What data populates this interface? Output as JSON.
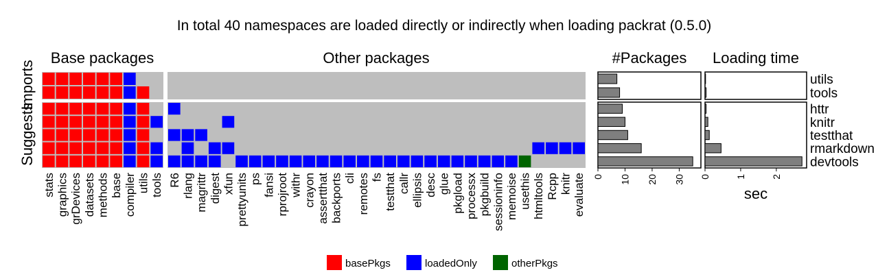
{
  "chart_data": {
    "type": "heatmap",
    "title": "In total 40 namespaces are loaded directly or indirectly when loading packrat (0.5.0)",
    "panel_titles": [
      "Base packages",
      "Other packages",
      "#Packages",
      "Loading time"
    ],
    "row_groups": [
      "Imports",
      "Suggests"
    ],
    "rows_imports": [
      "utils",
      "tools"
    ],
    "rows_suggests": [
      "httr",
      "knitr",
      "testthat",
      "rmarkdown",
      "devtools"
    ],
    "base_packages": [
      "stats",
      "graphics",
      "grDevices",
      "datasets",
      "methods",
      "base",
      "compiler",
      "utils",
      "tools"
    ],
    "other_packages": [
      "R6",
      "rlang",
      "magrittr",
      "digest",
      "xfun",
      "prettyunits",
      "ps",
      "fansi",
      "rprojroot",
      "withr",
      "crayon",
      "assertthat",
      "backports",
      "cli",
      "remotes",
      "fs",
      "testthat",
      "callr",
      "ellipsis",
      "desc",
      "glue",
      "pkgload",
      "processx",
      "pkgbuild",
      "sessioninfo",
      "memoise",
      "usethis",
      "htmltools",
      "Rcpp",
      "knitr",
      "evaluate"
    ],
    "matrix_base": {
      "utils": [
        "B",
        "B",
        "B",
        "B",
        "B",
        "B",
        "L",
        "-",
        "-"
      ],
      "tools": [
        "B",
        "B",
        "B",
        "B",
        "B",
        "B",
        "L",
        "B",
        "-"
      ],
      "httr": [
        "B",
        "B",
        "B",
        "B",
        "B",
        "B",
        "L",
        "B",
        "-"
      ],
      "knitr": [
        "B",
        "B",
        "B",
        "B",
        "B",
        "B",
        "L",
        "B",
        "L"
      ],
      "testthat": [
        "B",
        "B",
        "B",
        "B",
        "B",
        "B",
        "L",
        "B",
        "-"
      ],
      "rmarkdown": [
        "B",
        "B",
        "B",
        "B",
        "B",
        "B",
        "L",
        "B",
        "L"
      ],
      "devtools": [
        "B",
        "B",
        "B",
        "B",
        "B",
        "B",
        "L",
        "B",
        "L"
      ]
    },
    "matrix_other": {
      "utils": [
        "-",
        "-",
        "-",
        "-",
        "-",
        "-",
        "-",
        "-",
        "-",
        "-",
        "-",
        "-",
        "-",
        "-",
        "-",
        "-",
        "-",
        "-",
        "-",
        "-",
        "-",
        "-",
        "-",
        "-",
        "-",
        "-",
        "-",
        "-",
        "-",
        "-",
        "-"
      ],
      "tools": [
        "-",
        "-",
        "-",
        "-",
        "-",
        "-",
        "-",
        "-",
        "-",
        "-",
        "-",
        "-",
        "-",
        "-",
        "-",
        "-",
        "-",
        "-",
        "-",
        "-",
        "-",
        "-",
        "-",
        "-",
        "-",
        "-",
        "-",
        "-",
        "-",
        "-",
        "-"
      ],
      "httr": [
        "L",
        "-",
        "-",
        "-",
        "-",
        "-",
        "-",
        "-",
        "-",
        "-",
        "-",
        "-",
        "-",
        "-",
        "-",
        "-",
        "-",
        "-",
        "-",
        "-",
        "-",
        "-",
        "-",
        "-",
        "-",
        "-",
        "-",
        "-",
        "-",
        "-",
        "-"
      ],
      "knitr": [
        "-",
        "-",
        "-",
        "-",
        "L",
        "-",
        "-",
        "-",
        "-",
        "-",
        "-",
        "-",
        "-",
        "-",
        "-",
        "-",
        "-",
        "-",
        "-",
        "-",
        "-",
        "-",
        "-",
        "-",
        "-",
        "-",
        "-",
        "-",
        "-",
        "-",
        "-"
      ],
      "testthat": [
        "L",
        "L",
        "L",
        "-",
        "-",
        "-",
        "-",
        "-",
        "-",
        "-",
        "-",
        "-",
        "-",
        "-",
        "-",
        "-",
        "-",
        "-",
        "-",
        "-",
        "-",
        "-",
        "-",
        "-",
        "-",
        "-",
        "-",
        "-",
        "-",
        "-",
        "-"
      ],
      "rmarkdown": [
        "-",
        "L",
        "-",
        "L",
        "L",
        "-",
        "-",
        "-",
        "-",
        "-",
        "-",
        "-",
        "-",
        "-",
        "-",
        "-",
        "-",
        "-",
        "-",
        "-",
        "-",
        "-",
        "-",
        "-",
        "-",
        "-",
        "-",
        "L",
        "L",
        "L",
        "L"
      ],
      "devtools": [
        "L",
        "L",
        "L",
        "L",
        "-",
        "L",
        "L",
        "L",
        "L",
        "L",
        "L",
        "L",
        "L",
        "L",
        "L",
        "L",
        "L",
        "L",
        "L",
        "L",
        "L",
        "L",
        "L",
        "L",
        "L",
        "L",
        "O",
        "-",
        "-",
        "-",
        "-"
      ]
    },
    "n_packages": {
      "series": "#Packages",
      "values": {
        "utils": 7,
        "tools": 8,
        "httr": 9,
        "knitr": 10,
        "testthat": 11,
        "rmarkdown": 16,
        "devtools": 35
      },
      "xlim": [
        0,
        38
      ],
      "ticks": [
        "0",
        "10",
        "20",
        "30"
      ]
    },
    "loading_time": {
      "series": "Loading time",
      "unit_label": "sec",
      "values": {
        "utils": 0.0,
        "tools": 0.03,
        "httr": 0.03,
        "knitr": 0.08,
        "testthat": 0.12,
        "rmarkdown": 0.45,
        "devtools": 2.72
      },
      "xlim": [
        0,
        2.85
      ],
      "ticks": [
        "0",
        "1",
        "2"
      ]
    },
    "legend": [
      {
        "key": "B",
        "label": "basePkgs",
        "color": "#ff0000"
      },
      {
        "key": "L",
        "label": "loadedOnly",
        "color": "#0000ff"
      },
      {
        "key": "O",
        "label": "otherPkgs",
        "color": "#006400"
      }
    ],
    "empty_color": "#bebebe",
    "bar_color": "#7f7f7f"
  }
}
